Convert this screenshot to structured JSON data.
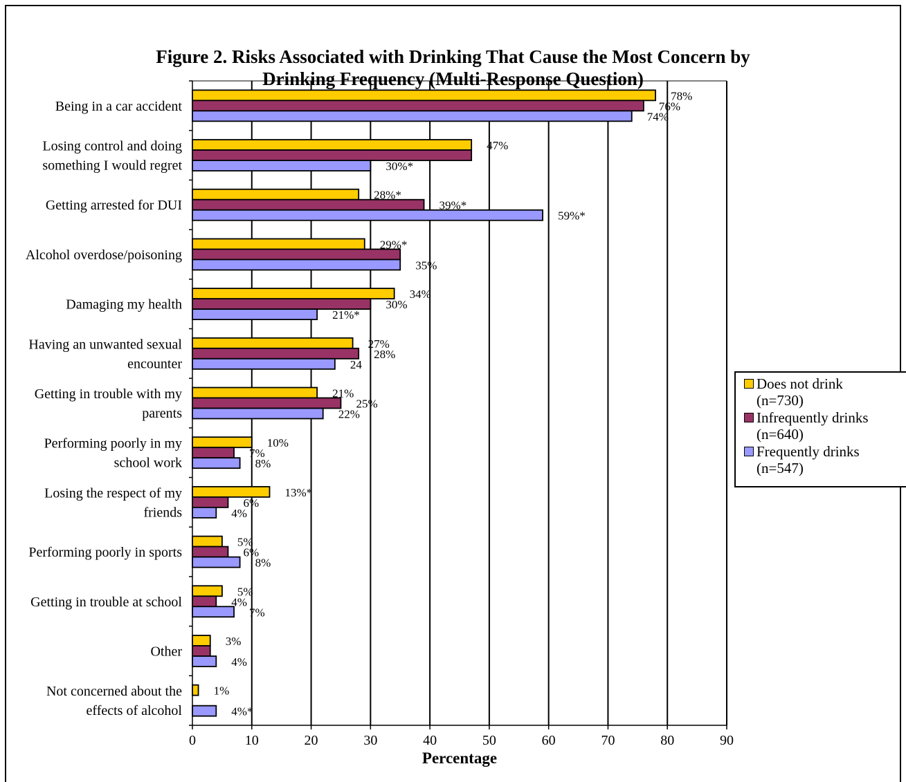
{
  "chart_data": {
    "type": "bar",
    "orientation": "horizontal",
    "title_lines": [
      "Figure 2.  Risks Associated with Drinking That Cause the Most Concern by",
      "Drinking Frequency (Multi-Response Question)"
    ],
    "xlabel": "Percentage",
    "ylabel": "",
    "xlim": [
      0,
      90
    ],
    "x_ticks": [
      0,
      10,
      20,
      30,
      40,
      50,
      60,
      70,
      80,
      90
    ],
    "grid": "vertical gridlines",
    "legend_position": "right",
    "categories": [
      [
        "Being in a car accident"
      ],
      [
        "Losing control and doing",
        "something I would regret"
      ],
      [
        "Getting arrested for DUI"
      ],
      [
        "Alcohol overdose/poisoning"
      ],
      [
        "Damaging my health"
      ],
      [
        "Having an unwanted sexual",
        "encounter"
      ],
      [
        "Getting in trouble with my",
        "parents"
      ],
      [
        "Performing poorly in my",
        "school work"
      ],
      [
        "Losing the respect of my",
        "friends"
      ],
      [
        "Performing poorly in sports"
      ],
      [
        "Getting in trouble at school"
      ],
      [
        "Other"
      ],
      [
        "Not concerned about the",
        "effects of alcohol"
      ]
    ],
    "series": [
      {
        "name": "Does not drink\n(n=730)",
        "color": "#FFCC00",
        "values": [
          78,
          47,
          28,
          29,
          34,
          27,
          21,
          10,
          13,
          5,
          5,
          3,
          1
        ],
        "labels": [
          "78%",
          "47%",
          "28%*",
          "29%*",
          "34%",
          "27%",
          "21%",
          "10%",
          "13%*",
          "5%",
          "5%",
          "3%",
          "1%"
        ]
      },
      {
        "name": "Infrequently drinks\n(n=640)",
        "color": "#993366",
        "values": [
          76,
          47,
          39,
          35,
          30,
          28,
          25,
          7,
          6,
          6,
          4,
          3,
          0
        ],
        "labels": [
          "76%",
          "",
          "39%*",
          "",
          "30%",
          "28%",
          "25%",
          "7%",
          "6%",
          "6%",
          "4%",
          "",
          ""
        ]
      },
      {
        "name": "Frequently drinks\n(n=547)",
        "color": "#9999FF",
        "values": [
          74,
          30,
          59,
          35,
          21,
          24,
          22,
          8,
          4,
          8,
          7,
          4,
          4
        ],
        "labels": [
          "74%",
          "30%*",
          "59%*",
          "35%",
          "21%*",
          "24",
          "22%",
          "8%",
          "4%",
          "8%",
          "7%",
          "4%",
          "4%*"
        ]
      }
    ]
  }
}
